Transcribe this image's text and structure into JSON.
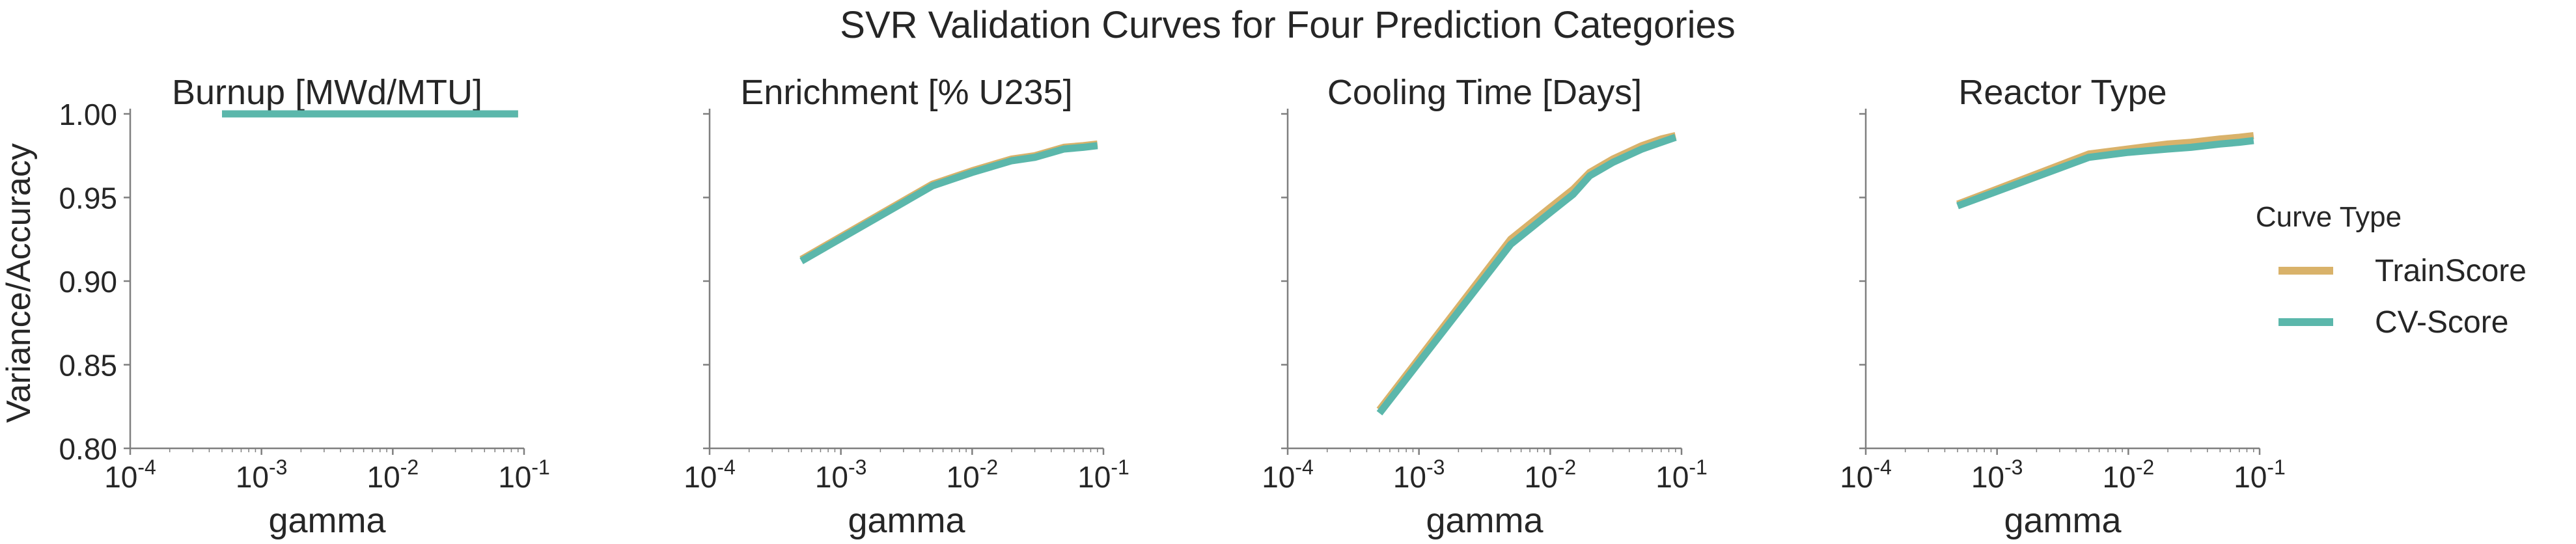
{
  "figure": {
    "title": "SVR Validation Curves for Four Prediction Categories",
    "ylabel": "Variance/Accuracy",
    "legend": {
      "title": "Curve Type",
      "placement": "right",
      "entries": [
        "TrainScore",
        "CV-Score"
      ]
    },
    "colors": {
      "TrainScore": "#d9b26a",
      "CV-Score": "#5bb7ab",
      "axis": "#7f7f7f",
      "text": "#262626"
    }
  },
  "chart_data": [
    {
      "type": "line",
      "title": "Burnup [MWd/MTU]",
      "xlabel": "gamma",
      "ylabel": "Variance/Accuracy",
      "xscale": "log",
      "xlim": [
        0.0001,
        0.1
      ],
      "ylim": [
        0.8,
        1.0
      ],
      "x_ticks": [
        "10^-4",
        "10^-3",
        "10^-2",
        "10^-1"
      ],
      "y_ticks": [
        "0.80",
        "0.85",
        "0.90",
        "0.95",
        "1.00"
      ],
      "grid": false,
      "x": [
        0.0005,
        0.005,
        0.01,
        0.02,
        0.03,
        0.05,
        0.07,
        0.09
      ],
      "series": [
        {
          "name": "TrainScore",
          "values": [
            1.0,
            1.0,
            1.0,
            1.0,
            1.0,
            1.0,
            1.0,
            1.0
          ]
        },
        {
          "name": "CV-Score",
          "values": [
            1.0,
            1.0,
            1.0,
            1.0,
            1.0,
            1.0,
            1.0,
            1.0
          ]
        }
      ]
    },
    {
      "type": "line",
      "title": "Enrichment [% U235]",
      "xlabel": "gamma",
      "xscale": "log",
      "xlim": [
        0.0001,
        0.1
      ],
      "ylim": [
        0.8,
        1.0
      ],
      "x_ticks": [
        "10^-4",
        "10^-3",
        "10^-2",
        "10^-1"
      ],
      "grid": false,
      "x": [
        0.0005,
        0.005,
        0.01,
        0.02,
        0.03,
        0.05,
        0.07,
        0.09
      ],
      "series": [
        {
          "name": "TrainScore",
          "values": [
            0.913,
            0.958,
            0.966,
            0.973,
            0.975,
            0.98,
            0.981,
            0.982
          ]
        },
        {
          "name": "CV-Score",
          "values": [
            0.912,
            0.957,
            0.965,
            0.972,
            0.974,
            0.979,
            0.98,
            0.981
          ]
        }
      ]
    },
    {
      "type": "line",
      "title": "Cooling Time [Days]",
      "xlabel": "gamma",
      "xscale": "log",
      "xlim": [
        0.0001,
        0.1
      ],
      "ylim": [
        0.8,
        1.0
      ],
      "x_ticks": [
        "10^-4",
        "10^-3",
        "10^-2",
        "10^-1"
      ],
      "grid": false,
      "x": [
        0.0005,
        0.005,
        0.01,
        0.015,
        0.02,
        0.03,
        0.05,
        0.07,
        0.09
      ],
      "series": [
        {
          "name": "TrainScore",
          "values": [
            0.823,
            0.925,
            0.944,
            0.955,
            0.965,
            0.973,
            0.981,
            0.985,
            0.987
          ]
        },
        {
          "name": "CV-Score",
          "values": [
            0.821,
            0.922,
            0.941,
            0.952,
            0.963,
            0.971,
            0.979,
            0.983,
            0.986
          ]
        }
      ]
    },
    {
      "type": "line",
      "title": "Reactor Type",
      "xlabel": "gamma",
      "xscale": "log",
      "xlim": [
        0.0001,
        0.1
      ],
      "ylim": [
        0.8,
        1.0
      ],
      "x_ticks": [
        "10^-4",
        "10^-3",
        "10^-2",
        "10^-1"
      ],
      "grid": false,
      "x": [
        0.0005,
        0.005,
        0.01,
        0.02,
        0.03,
        0.05,
        0.07,
        0.09
      ],
      "series": [
        {
          "name": "TrainScore",
          "values": [
            0.946,
            0.976,
            0.979,
            0.982,
            0.983,
            0.985,
            0.986,
            0.987
          ]
        },
        {
          "name": "CV-Score",
          "values": [
            0.945,
            0.974,
            0.977,
            0.979,
            0.98,
            0.982,
            0.983,
            0.984
          ]
        }
      ]
    }
  ]
}
